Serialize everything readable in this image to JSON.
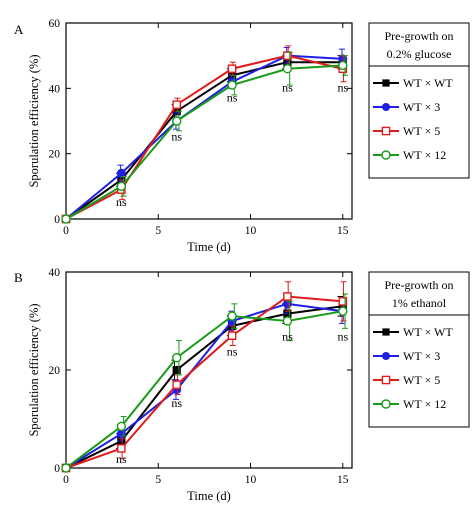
{
  "chart_data": [
    {
      "panel_label": "A",
      "type": "line",
      "xlabel": "Time (d)",
      "ylabel": "Sporulation efficiency (%)",
      "xlim": [
        0,
        15.5
      ],
      "ylim": [
        0,
        60
      ],
      "xticks": [
        0,
        5,
        10,
        15
      ],
      "yticks": [
        0,
        20,
        40,
        60
      ],
      "x": [
        0,
        3,
        6,
        9,
        12,
        15
      ],
      "legend_title": [
        "Pre-growth on",
        "0.2% glucose"
      ],
      "legend_position": "top-right, outside plot",
      "series": [
        {
          "name": "WT × WT",
          "color": "#000000",
          "marker": "filled-square",
          "values": [
            0,
            12,
            33,
            44,
            48,
            48
          ],
          "errors": [
            0,
            2,
            2,
            2,
            2,
            2
          ]
        },
        {
          "name": "WT × 3",
          "color": "#1f1fe6",
          "marker": "filled-circle",
          "values": [
            0,
            14,
            30,
            42,
            50,
            49
          ],
          "errors": [
            0,
            2.5,
            2.5,
            2,
            2.5,
            3
          ]
        },
        {
          "name": "WT × 5",
          "color": "#e01b1b",
          "marker": "open-square",
          "values": [
            0,
            9,
            35,
            46,
            50,
            46
          ],
          "errors": [
            0,
            3,
            2,
            2,
            3,
            4
          ]
        },
        {
          "name": "WT × 12",
          "color": "#1a9a1a",
          "marker": "open-circle",
          "values": [
            0,
            10,
            30,
            41,
            46,
            47
          ],
          "errors": [
            0,
            3,
            3,
            3,
            5,
            3
          ]
        }
      ],
      "annotations": [
        {
          "text": "ns",
          "x": 3,
          "y": 4
        },
        {
          "text": "ns",
          "x": 6,
          "y": 24
        },
        {
          "text": "ns",
          "x": 9,
          "y": 36
        },
        {
          "text": "ns",
          "x": 12,
          "y": 39
        },
        {
          "text": "ns",
          "x": 15,
          "y": 39
        }
      ]
    },
    {
      "panel_label": "B",
      "type": "line",
      "xlabel": "Time (d)",
      "ylabel": "Sporulation efficiency (%)",
      "xlim": [
        0,
        15.5
      ],
      "ylim": [
        0,
        40
      ],
      "xticks": [
        0,
        5,
        10,
        15
      ],
      "yticks": [
        0,
        20,
        40
      ],
      "x": [
        0,
        3,
        6,
        9,
        12,
        15
      ],
      "legend_title": [
        "Pre-growth on",
        "1% ethanol"
      ],
      "legend_position": "top-right, outside plot",
      "series": [
        {
          "name": "WT × WT",
          "color": "#000000",
          "marker": "filled-square",
          "values": [
            0,
            5.5,
            20,
            29,
            31.5,
            33
          ],
          "errors": [
            0,
            1.5,
            2,
            2,
            2,
            2
          ]
        },
        {
          "name": "WT × 3",
          "color": "#1f1fe6",
          "marker": "filled-circle",
          "values": [
            0,
            7,
            16,
            30,
            33.5,
            32
          ],
          "errors": [
            0,
            1.5,
            2,
            2,
            2,
            2.5
          ]
        },
        {
          "name": "WT × 5",
          "color": "#e01b1b",
          "marker": "open-square",
          "values": [
            0,
            4,
            17,
            27,
            35,
            34
          ],
          "errors": [
            0,
            2,
            2,
            2,
            3,
            4
          ]
        },
        {
          "name": "WT × 12",
          "color": "#1a9a1a",
          "marker": "open-circle",
          "values": [
            0,
            8.5,
            22.5,
            31,
            30,
            32
          ],
          "errors": [
            0,
            2,
            3.5,
            2.5,
            4,
            3.5
          ]
        }
      ],
      "annotations": [
        {
          "text": "ns",
          "x": 3,
          "y": 1
        },
        {
          "text": "ns",
          "x": 6,
          "y": 12.5
        },
        {
          "text": "ns",
          "x": 9,
          "y": 23
        },
        {
          "text": "ns",
          "x": 12,
          "y": 26
        },
        {
          "text": "ns",
          "x": 15,
          "y": 26
        }
      ]
    }
  ]
}
